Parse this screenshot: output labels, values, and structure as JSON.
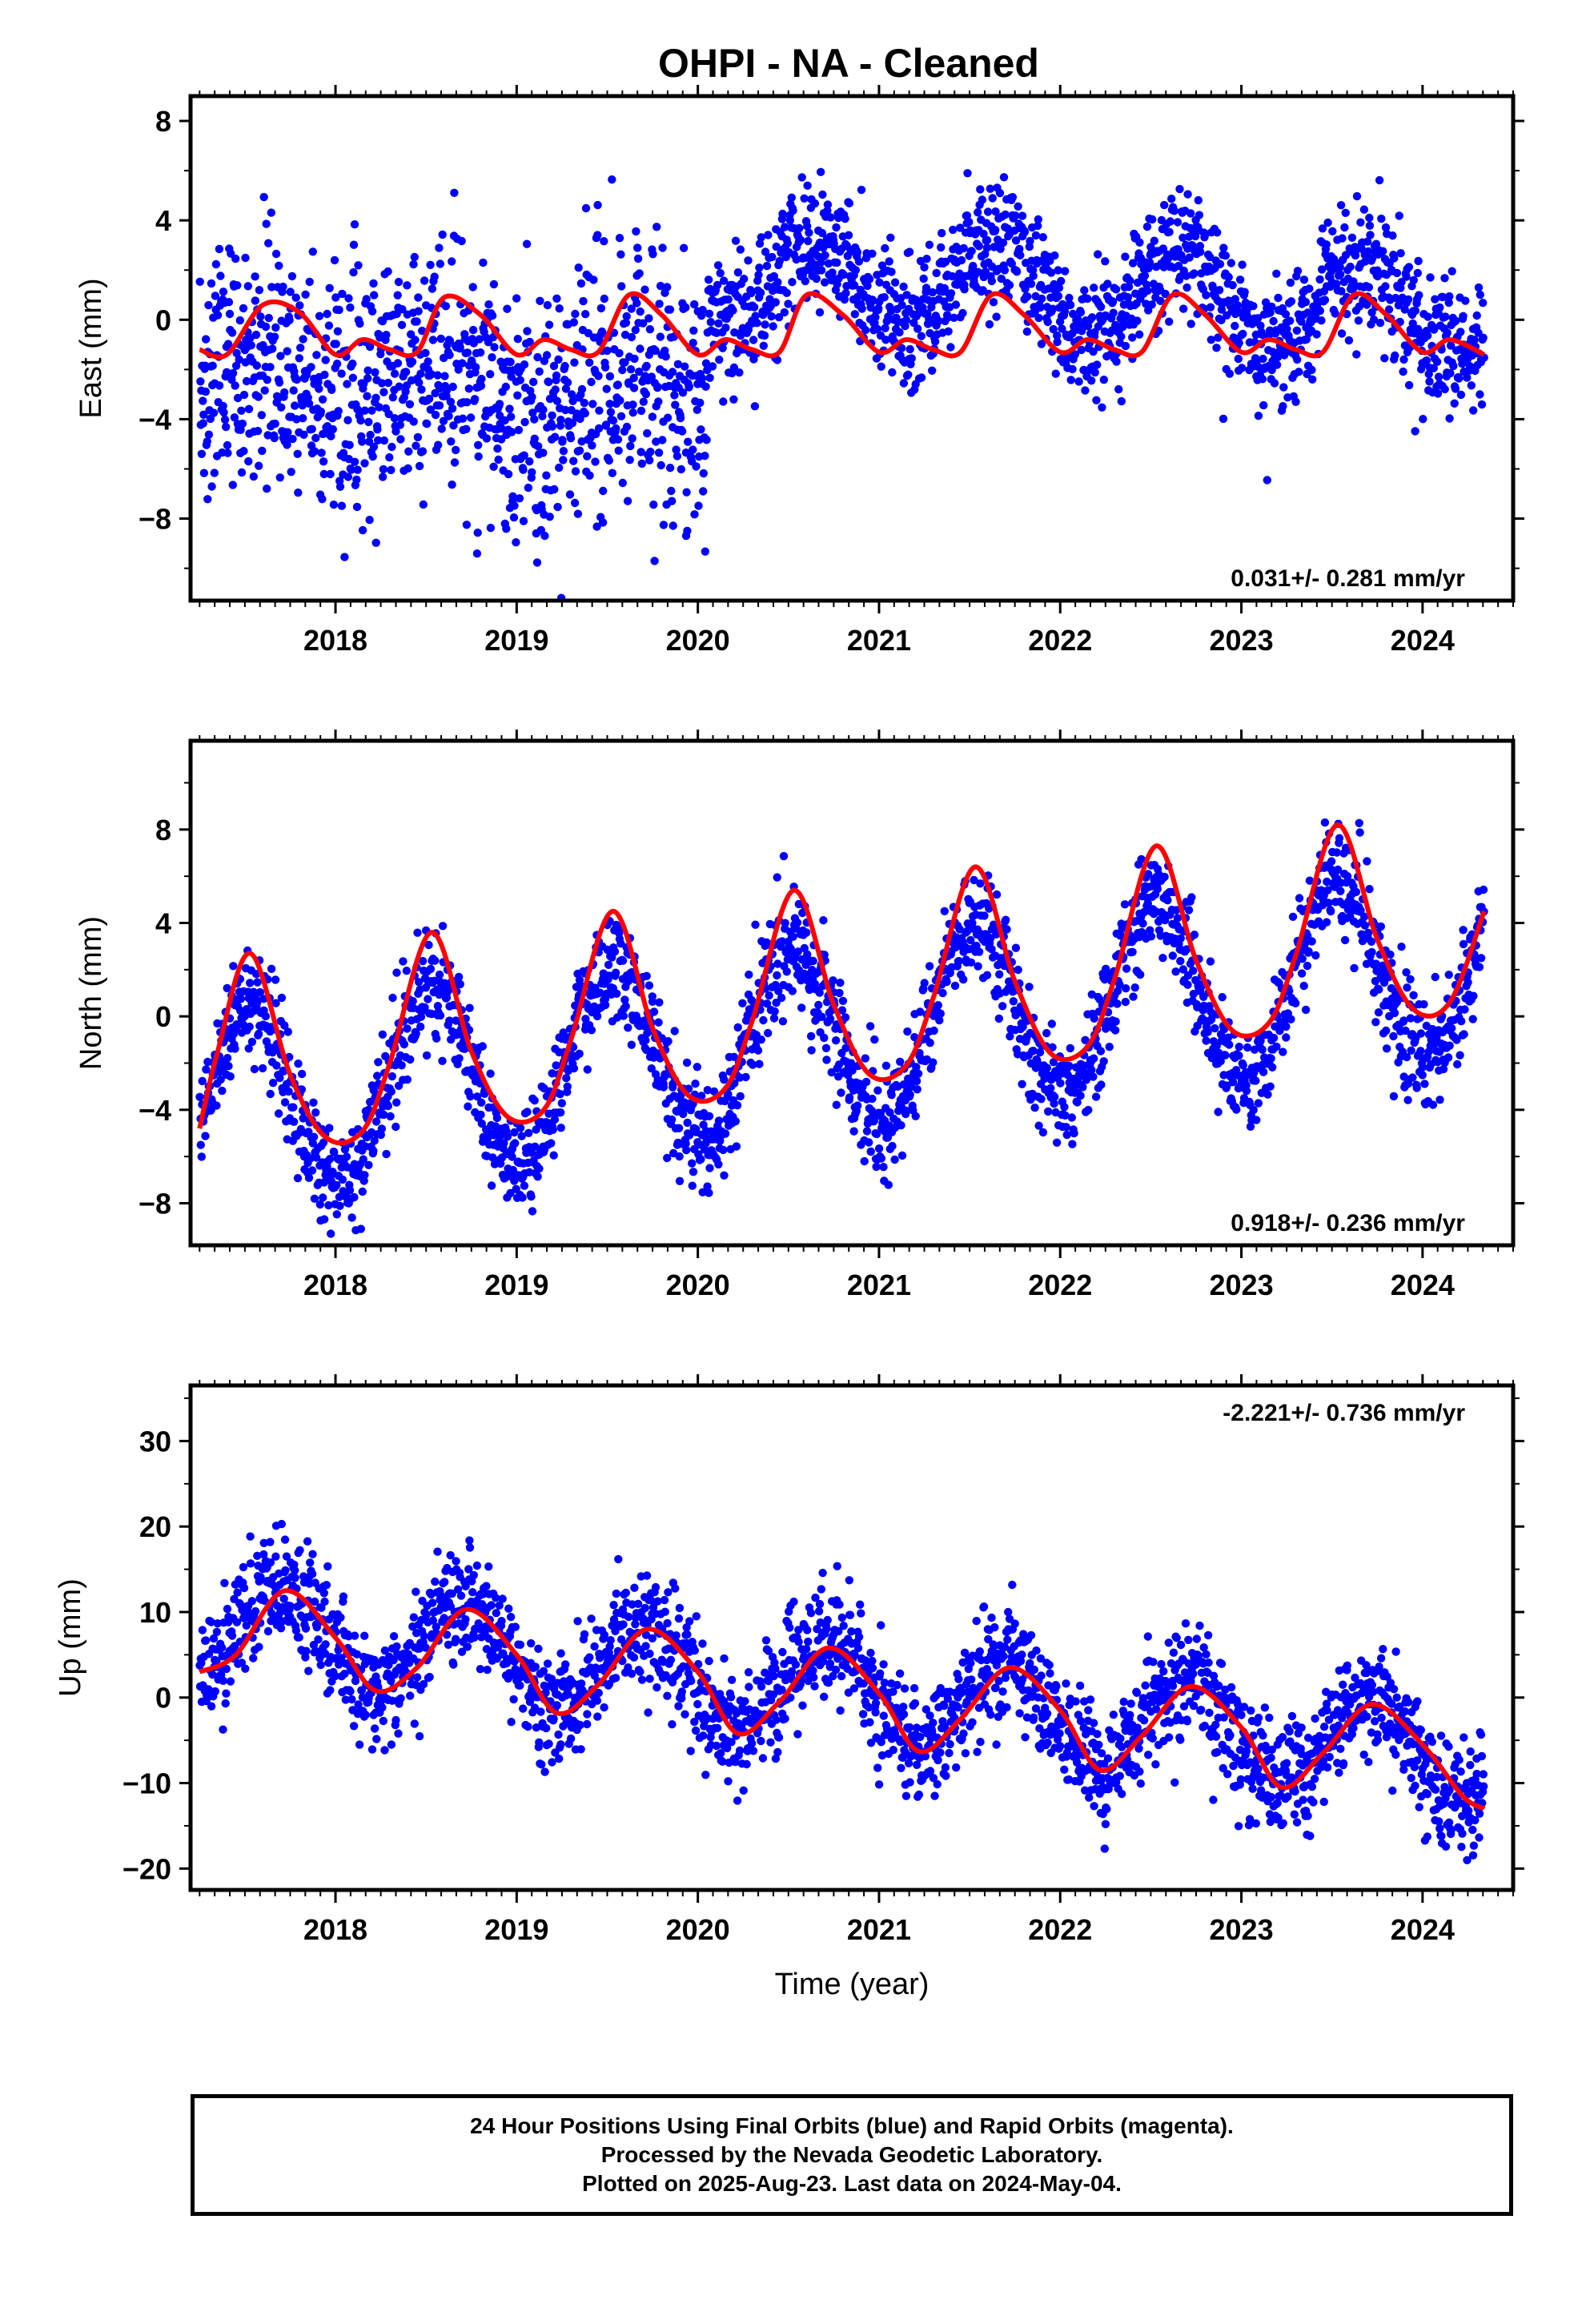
{
  "title": "OHPI  - NA - Cleaned",
  "colors": {
    "points": "#0000ff",
    "fit": "#ff0000",
    "frame": "#000000"
  },
  "chart_data": [
    {
      "type": "scatter",
      "component": "east",
      "ylabel": "East (mm)",
      "xlabel": "",
      "xlim": [
        2017.2,
        2024.5
      ],
      "ylim": [
        -11.3,
        9
      ],
      "yticks": [
        -8,
        -4,
        0,
        4,
        8
      ],
      "xticks": [
        2018,
        2019,
        2020,
        2021,
        2022,
        2023,
        2024
      ],
      "rate_label": "0.031+/- 0.281 mm/yr",
      "rate_position": "bottom-right",
      "series": [
        {
          "name": "24 hour positions",
          "segments": [
            {
              "x0": 2017.25,
              "x1": 2020.05,
              "mean": -3.2,
              "trend": -0.25,
              "annual_amp": 0.9,
              "annual_phase": 0.62,
              "noise": 2.5,
              "count": 1050
            },
            {
              "x0": 2020.05,
              "x1": 2024.34,
              "mean": 1.6,
              "trend": -0.35,
              "annual_amp": 1.8,
              "annual_phase": 0.65,
              "noise": 1.3,
              "count": 1500
            }
          ]
        },
        {
          "name": "fit",
          "x": [
            2017.25,
            2017.4,
            2017.6,
            2017.8,
            2018.0,
            2018.15,
            2018.3,
            2018.45,
            2018.6,
            2018.8,
            2019.0,
            2019.15,
            2019.3,
            2019.45,
            2019.62,
            2019.8,
            2020.0,
            2020.15,
            2020.3,
            2020.45,
            2020.6,
            2020.8,
            2021.0,
            2021.15,
            2021.3,
            2021.45,
            2021.62,
            2021.8,
            2022.0,
            2022.15,
            2022.3,
            2022.45,
            2022.62,
            2022.8,
            2023.0,
            2023.15,
            2023.3,
            2023.45,
            2023.62,
            2023.8,
            2024.0,
            2024.15,
            2024.34
          ],
          "y": [
            -1.2,
            -1.4,
            0.6,
            0.3,
            -1.4,
            -0.8,
            -1.2,
            -1.3,
            0.9,
            0.2,
            -1.4,
            -0.8,
            -1.2,
            -1.3,
            1.0,
            0.2,
            -1.4,
            -0.8,
            -1.2,
            -1.3,
            1.0,
            0.2,
            -1.3,
            -0.8,
            -1.2,
            -1.3,
            1.0,
            0.2,
            -1.3,
            -0.8,
            -1.2,
            -1.3,
            1.0,
            0.2,
            -1.3,
            -0.8,
            -1.2,
            -1.3,
            1.0,
            0.2,
            -1.3,
            -0.8,
            -1.4
          ]
        }
      ]
    },
    {
      "type": "scatter",
      "component": "north",
      "ylabel": "North (mm)",
      "xlabel": "",
      "xlim": [
        2017.2,
        2024.5
      ],
      "ylim": [
        -9.8,
        11.8
      ],
      "yticks": [
        -8,
        -4,
        0,
        4,
        8
      ],
      "xticks": [
        2018,
        2019,
        2020,
        2021,
        2022,
        2023,
        2024
      ],
      "rate_label": "0.918+/- 0.236 mm/yr",
      "rate_position": "bottom-right",
      "series": [
        {
          "name": "24 hour positions",
          "segments": [
            {
              "x0": 2017.25,
              "x1": 2024.34,
              "mean": -1.0,
              "trend": 0.9,
              "annual_amp": 4.0,
              "annual_phase": 0.52,
              "noise": 1.2,
              "count": 2400
            }
          ]
        },
        {
          "name": "fit",
          "x": [
            2017.25,
            2017.35,
            2017.53,
            2017.75,
            2017.95,
            2018.15,
            2018.3,
            2018.53,
            2018.75,
            2018.95,
            2019.15,
            2019.3,
            2019.53,
            2019.75,
            2019.95,
            2020.15,
            2020.3,
            2020.53,
            2020.75,
            2020.95,
            2021.15,
            2021.3,
            2021.53,
            2021.75,
            2021.95,
            2022.15,
            2022.3,
            2022.53,
            2022.75,
            2022.95,
            2023.15,
            2023.3,
            2023.53,
            2023.75,
            2023.95,
            2024.15,
            2024.34
          ],
          "y": [
            -4.8,
            -1.5,
            2.7,
            -2.5,
            -5.2,
            -4.9,
            -2.0,
            3.6,
            -1.5,
            -4.3,
            -4.0,
            -1.0,
            4.5,
            -0.5,
            -3.4,
            -3.1,
            -0.2,
            5.4,
            0.5,
            -2.5,
            -2.1,
            0.8,
            6.4,
            1.5,
            -1.6,
            -1.3,
            1.6,
            7.3,
            2.4,
            -0.6,
            -0.3,
            2.6,
            8.2,
            3.3,
            0.3,
            0.6,
            4.5
          ]
        }
      ]
    },
    {
      "type": "scatter",
      "component": "up",
      "ylabel": "Up (mm)",
      "xlabel": "Time (year)",
      "xlim": [
        2017.2,
        2024.5
      ],
      "ylim": [
        -22.5,
        36.5
      ],
      "yticks": [
        -20,
        -10,
        0,
        10,
        20,
        30
      ],
      "xticks": [
        2018,
        2019,
        2020,
        2021,
        2022,
        2023,
        2024
      ],
      "rate_label": "-2.221+/- 0.736 mm/yr",
      "rate_position": "top-right",
      "series": [
        {
          "name": "24 hour positions",
          "segments": [
            {
              "x0": 2017.25,
              "x1": 2024.34,
              "mean": 1.5,
              "trend": -2.2,
              "annual_amp": 5.5,
              "annual_phase": 0.72,
              "noise": 3.3,
              "count": 2400
            }
          ]
        },
        {
          "name": "fit",
          "x": [
            2017.25,
            2017.45,
            2017.72,
            2018.0,
            2018.22,
            2018.45,
            2018.72,
            2019.0,
            2019.22,
            2019.45,
            2019.72,
            2020.0,
            2020.22,
            2020.45,
            2020.72,
            2021.0,
            2021.22,
            2021.45,
            2021.72,
            2022.0,
            2022.22,
            2022.45,
            2022.72,
            2023.0,
            2023.22,
            2023.45,
            2023.72,
            2024.0,
            2024.22,
            2024.34
          ],
          "y": [
            3.0,
            5.0,
            12.5,
            7.0,
            0.8,
            3.5,
            10.3,
            5.0,
            -1.8,
            1.5,
            8.0,
            3.0,
            -4.2,
            -0.5,
            5.8,
            0.5,
            -6.3,
            -2.5,
            3.5,
            -1.5,
            -8.5,
            -4.5,
            1.3,
            -3.5,
            -10.5,
            -6.5,
            -0.8,
            -5.5,
            -11.5,
            -13.0
          ]
        }
      ]
    }
  ],
  "footer": {
    "line1": "24 Hour Positions Using Final Orbits (blue) and Rapid Orbits (magenta).",
    "line2": "Processed by the Nevada Geodetic Laboratory.",
    "line3": "Plotted on 2025-Aug-23. Last data on 2024-May-04."
  }
}
